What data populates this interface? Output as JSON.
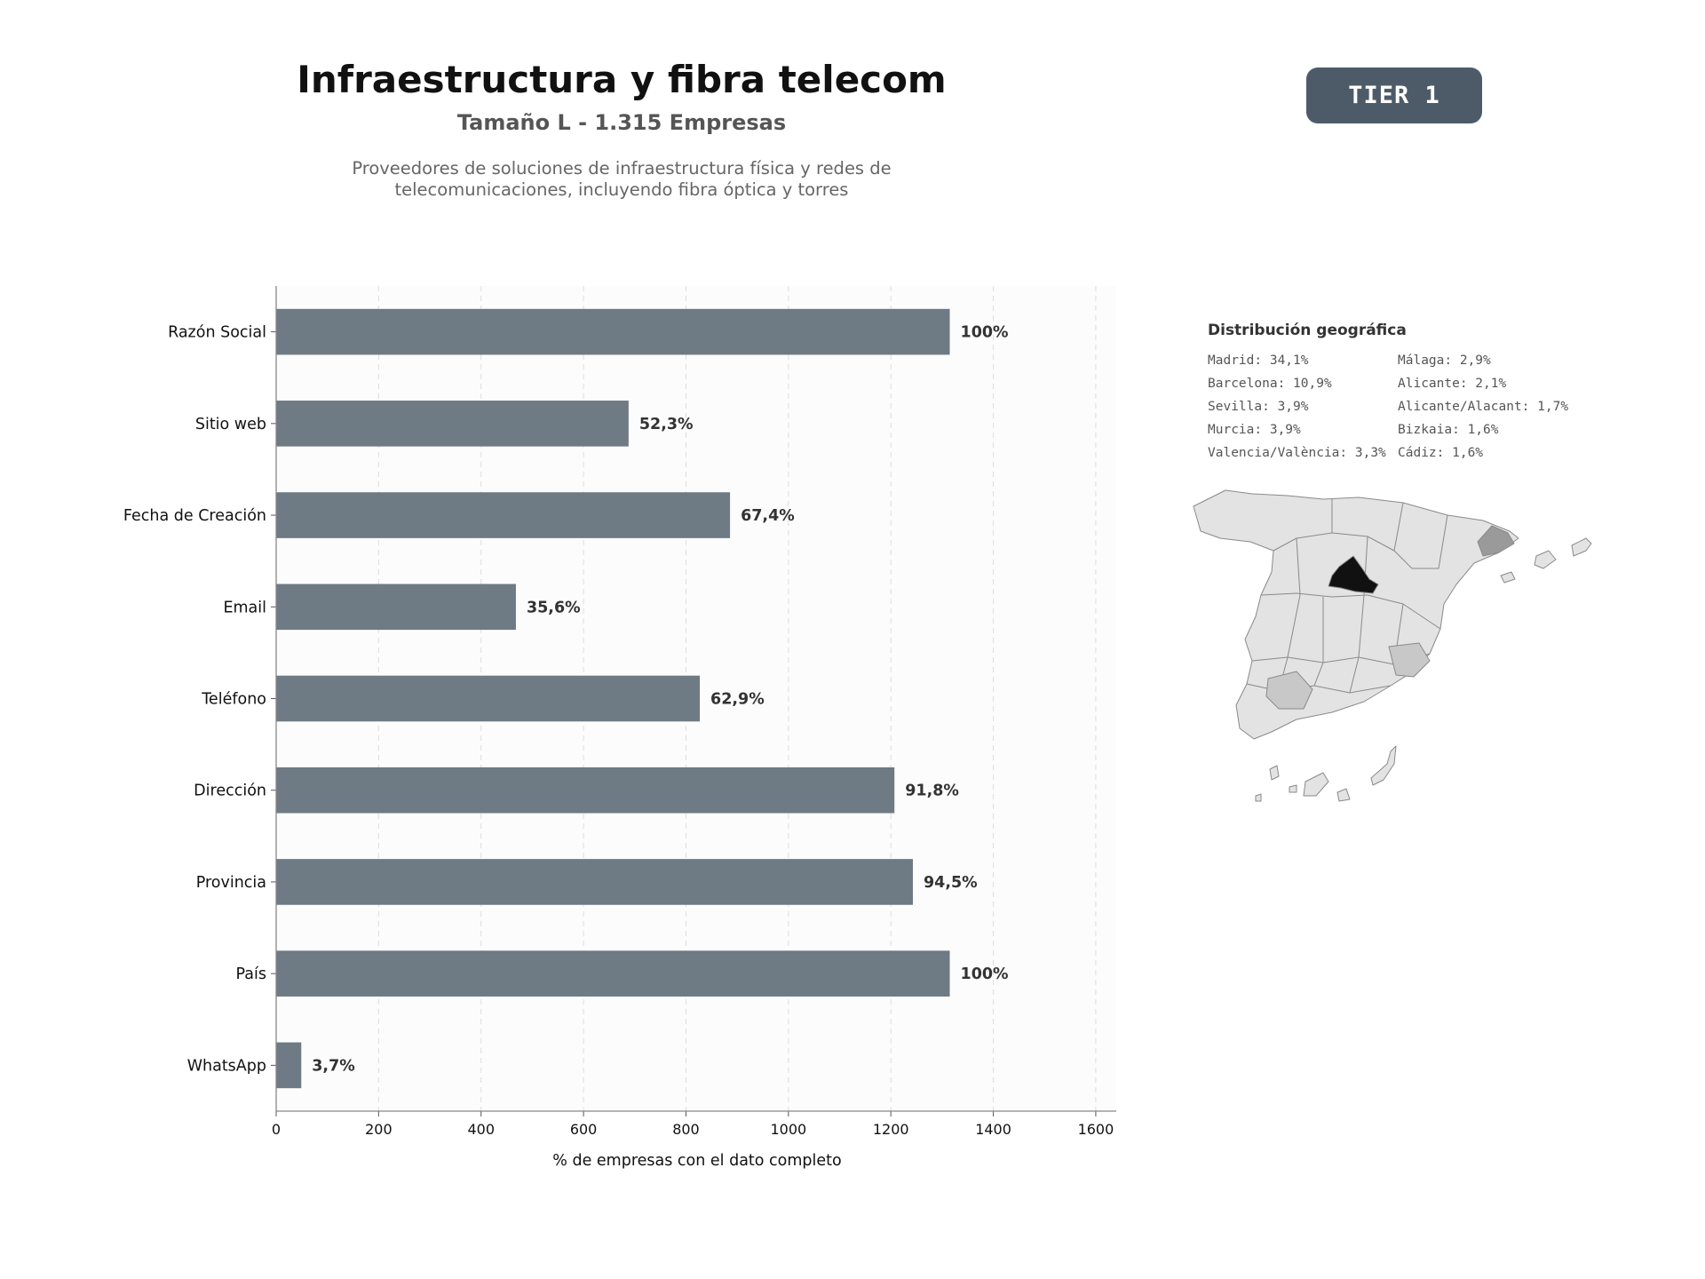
{
  "header": {
    "title": "Infraestructura y fibra telecom",
    "subtitle": "Tamaño L - 1.315 Empresas",
    "description_line1": "Proveedores de soluciones de infraestructura física y redes de",
    "description_line2": "telecomunicaciones, incluyendo fibra óptica y torres"
  },
  "badge": {
    "label": "TIER 1",
    "color": "#4d5b69"
  },
  "chart_data": {
    "type": "bar",
    "orientation": "horizontal",
    "categories": [
      "Razón Social",
      "Sitio web",
      "Fecha de Creación",
      "Email",
      "Teléfono",
      "Dirección",
      "Provincia",
      "País",
      "WhatsApp"
    ],
    "values": [
      1315,
      688,
      886,
      468,
      827,
      1207,
      1243,
      1315,
      49
    ],
    "value_labels": [
      "100%",
      "52,3%",
      "67,4%",
      "35,6%",
      "62,9%",
      "91,8%",
      "94,5%",
      "100%",
      "3,7%"
    ],
    "xlabel": "% de empresas con el dato completo",
    "xlim": [
      0,
      1640
    ],
    "xticks": [
      0,
      200,
      400,
      600,
      800,
      1000,
      1200,
      1400,
      1600
    ],
    "grid": "vertical-dashed",
    "bar_color": "#6e7a84"
  },
  "geo": {
    "title": "Distribución geográfica",
    "items": [
      "Madrid: 34,1%",
      "Málaga: 2,9%",
      "Barcelona: 10,9%",
      "Alicante: 2,1%",
      "Sevilla: 3,9%",
      "Alicante/Alacant: 1,7%",
      "Murcia: 3,9%",
      "Bizkaia: 1,6%",
      "Valencia/València: 3,3%",
      "Cádiz: 1,6%"
    ],
    "colors": {
      "base": "#e3e3e3",
      "madrid": "#111111",
      "barcelona": "#9a9a9a",
      "medium": "#c8c8c8",
      "border": "#8a8a8a"
    }
  }
}
